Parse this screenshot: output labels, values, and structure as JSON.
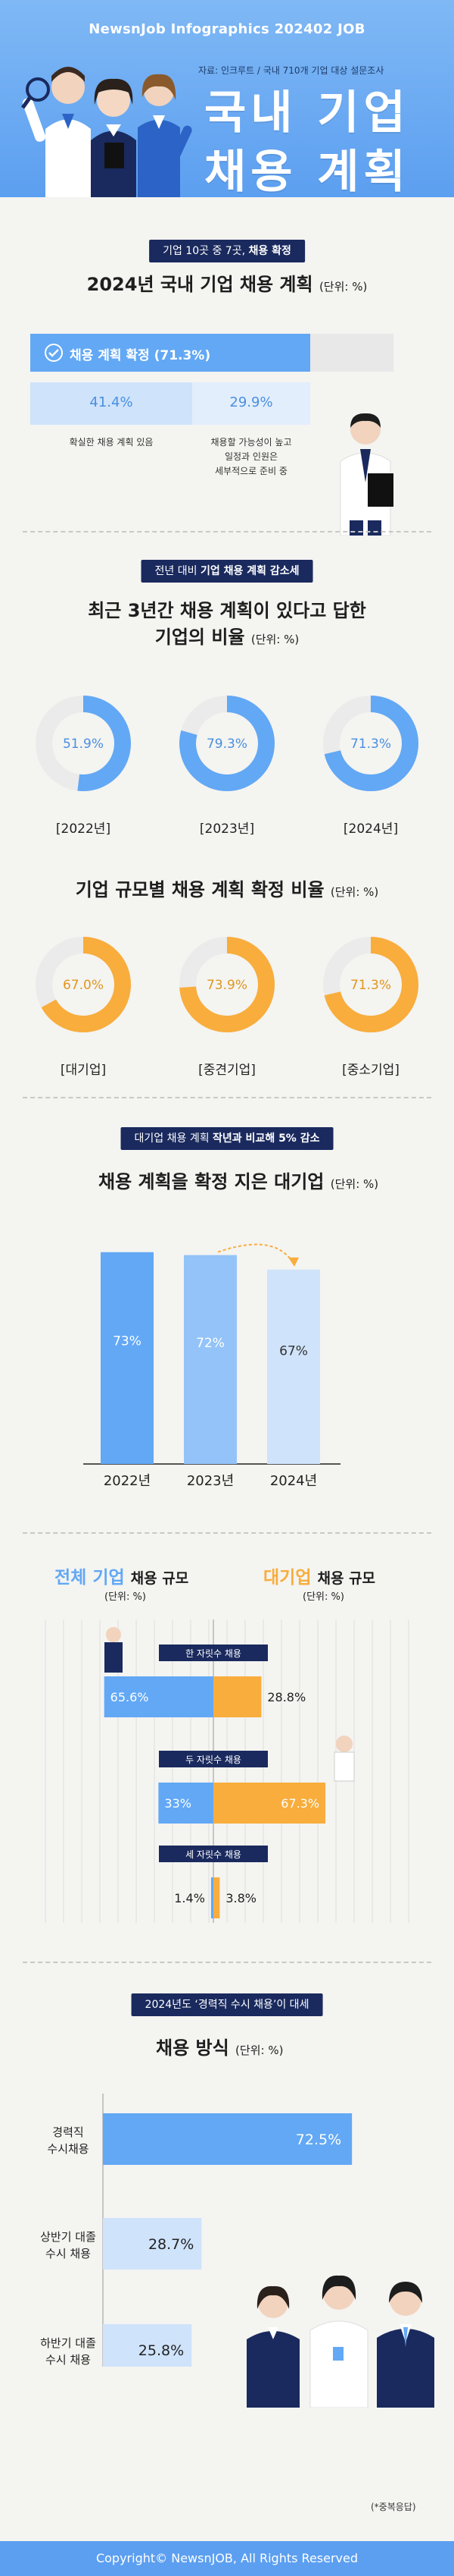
{
  "header": {
    "brand": "NewsnJob Infographics 202402 JOB",
    "source": "자료: 인크루트 / 국내 710개 기업 대상 설문조사",
    "title_line1": "국내 기업",
    "title_line2": "채용 계획"
  },
  "s1": {
    "pill_plain": "기업 10곳 중 7곳,",
    "pill_bold": "채용 확정",
    "title": "2024년 국내 기업 채용 계획",
    "unit": "(단위: %)",
    "confirmed_label": "채용 계획 확정 (71.3%)",
    "left_value": "41.4%",
    "left_caption": "확실한 채용 계획 있음",
    "right_value": "29.9%",
    "right_caption_1": "채용할 가능성이 높고",
    "right_caption_2": "일정과 인원은",
    "right_caption_3": "세부적으로 준비 중"
  },
  "s2": {
    "pill_plain": "전년 대비",
    "pill_bold": "기업 채용 계획 감소세",
    "title_line1": "최근 3년간 채용 계획이 있다고 답한",
    "title_line2": "기업의 비율",
    "unit": "(단위: %)"
  },
  "s3": {
    "title": "기업 규모별 채용 계획 확정 비율",
    "unit": "(단위: %)"
  },
  "s4": {
    "pill_plain": "대기업 채용 계획",
    "pill_bold": "작년과 비교해 5% 감소",
    "title": "채용 계획을 확정 지은 대기업",
    "unit": "(단위: %)"
  },
  "s5": {
    "left_title_accent": "전체 기업",
    "left_title_rest": "채용 규모",
    "right_title_accent": "대기업",
    "right_title_rest": "채용 규모",
    "left_unit": "(단위: %)",
    "right_unit": "(단위: %)"
  },
  "s6": {
    "pill_text": "2024년도 ‘경력직 수시 채용’이 대세",
    "title": "채용 방식",
    "unit": "(단위: %)",
    "note": "(*중복응답)"
  },
  "footer": "Copyright© NewsnJOB, All Rights Reserved",
  "colors": {
    "blue": "#62a8f5",
    "light_blue": "#cfe3fb",
    "orange": "#f8ad3c",
    "track": "#ebebeb",
    "navy": "#1a2a5e"
  },
  "chart_data": [
    {
      "type": "bar",
      "title": "2024년 국내 기업 채용 계획",
      "categories": [
        "확실한 채용 계획 있음",
        "채용할 가능성이 높고 일정과 인원은 세부적으로 준비 중"
      ],
      "values": [
        41.4,
        29.9
      ],
      "total": 71.3
    },
    {
      "type": "pie",
      "title": "최근 3년간 채용 계획이 있다고 답한 기업의 비율",
      "categories": [
        "[2022년]",
        "[2023년]",
        "[2024년]"
      ],
      "values": [
        51.9,
        79.3,
        71.3
      ],
      "value_labels": [
        "51.9%",
        "79.3%",
        "71.3%"
      ],
      "color": "#62a8f5"
    },
    {
      "type": "pie",
      "title": "기업 규모별 채용 계획 확정 비율",
      "categories": [
        "[대기업]",
        "[중견기업]",
        "[중소기업]"
      ],
      "values": [
        67.0,
        73.9,
        71.3
      ],
      "value_labels": [
        "67.0%",
        "73.9%",
        "71.3%"
      ],
      "color": "#f8ad3c"
    },
    {
      "type": "bar",
      "title": "채용 계획을 확정 지은 대기업",
      "categories": [
        "2022년",
        "2023년",
        "2024년"
      ],
      "values": [
        73,
        72,
        67
      ],
      "value_labels": [
        "73%",
        "72%",
        "67%"
      ],
      "ylim": [
        0,
        80
      ]
    },
    {
      "type": "bar",
      "title": "채용 규모",
      "categories": [
        "한 자릿수 채용",
        "두 자릿수 채용",
        "세 자릿수 채용"
      ],
      "series": [
        {
          "name": "전체 기업",
          "values": [
            65.6,
            33,
            1.4
          ],
          "labels": [
            "65.6%",
            "33%",
            "1.4%"
          ]
        },
        {
          "name": "대기업",
          "values": [
            28.8,
            67.3,
            3.8
          ],
          "labels": [
            "28.8%",
            "67.3%",
            "3.8%"
          ]
        }
      ]
    },
    {
      "type": "bar",
      "title": "채용 방식",
      "categories": [
        "경력직 수시채용",
        "상반기 대졸 수시 채용",
        "하반기 대졸 수시 채용"
      ],
      "category_lines": [
        [
          "경력직",
          "수시채용"
        ],
        [
          "상반기 대졸",
          "수시 채용"
        ],
        [
          "하반기 대졸",
          "수시 채용"
        ]
      ],
      "values": [
        72.5,
        28.7,
        25.8
      ],
      "value_labels": [
        "72.5%",
        "28.7%",
        "25.8%"
      ],
      "xlim": [
        0,
        100
      ]
    }
  ]
}
